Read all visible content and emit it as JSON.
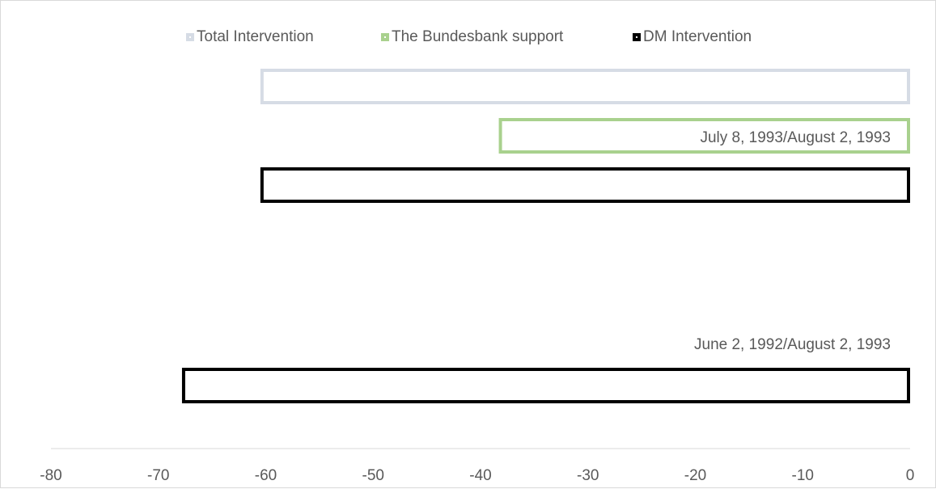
{
  "chart_data": {
    "type": "bar",
    "orientation": "horizontal",
    "categories": [
      "June 2, 1992/August 2, 1993",
      "July 8, 1993/August 2, 1993"
    ],
    "series": [
      {
        "name": "Total Intervention",
        "color": "#d6dce5",
        "values": [
          null,
          -60.5
        ]
      },
      {
        "name": "The Bundesbank support",
        "color": "#a9d18e",
        "values": [
          null,
          -38.3
        ]
      },
      {
        "name": "DM Intervention",
        "color": "#000000",
        "values": [
          -67.8,
          -60.5
        ]
      }
    ],
    "xlim": [
      -80,
      0
    ],
    "xticks": [
      "-80",
      "-70",
      "-60",
      "-50",
      "-40",
      "-30",
      "-20",
      "-10",
      "0"
    ],
    "legend_position": "top",
    "grid": false
  }
}
